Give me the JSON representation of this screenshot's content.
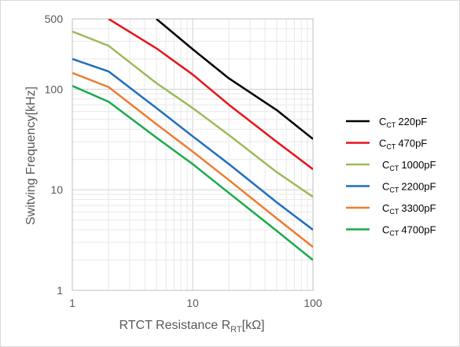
{
  "chart_data": {
    "type": "line",
    "xscale": "log",
    "yscale": "log",
    "xlim": [
      1,
      100
    ],
    "ylim": [
      1,
      500
    ],
    "x_ticks": [
      1,
      10,
      100
    ],
    "x_tick_labels": [
      "1",
      "10",
      "100"
    ],
    "y_ticks": [
      1,
      10,
      100,
      500
    ],
    "y_tick_labels": [
      "1",
      "10",
      "100",
      "500"
    ],
    "xlabel": {
      "main": "RTCT Resistance R",
      "sub": "RT",
      "unit": "[kΩ]"
    },
    "ylabel": "Switving Frequency[kHz]",
    "grid": true,
    "legend_position": "right",
    "series": [
      {
        "name": "220pF",
        "name_prefix": "C",
        "name_sub": "CT",
        "color": "#000000",
        "points": [
          [
            5,
            500
          ],
          [
            10,
            250
          ],
          [
            20,
            128
          ],
          [
            50,
            62
          ],
          [
            100,
            32
          ]
        ]
      },
      {
        "name": "470pF",
        "name_prefix": "C",
        "name_sub": "CT",
        "color": "#e8141c",
        "points": [
          [
            2,
            500
          ],
          [
            5,
            255
          ],
          [
            10,
            140
          ],
          [
            20,
            70
          ],
          [
            50,
            30
          ],
          [
            100,
            16
          ]
        ]
      },
      {
        "name": "1000pF",
        "name_prefix": "C",
        "name_sub": "CT",
        "color": "#9bbb59",
        "points": [
          [
            1,
            375
          ],
          [
            2,
            270
          ],
          [
            5,
            115
          ],
          [
            10,
            65
          ],
          [
            20,
            35
          ],
          [
            50,
            15
          ],
          [
            100,
            8.5
          ]
        ]
      },
      {
        "name": "2200pF",
        "name_prefix": "C",
        "name_sub": "CT",
        "color": "#1f6fba",
        "points": [
          [
            1,
            200
          ],
          [
            2,
            150
          ],
          [
            5,
            65
          ],
          [
            10,
            34
          ],
          [
            20,
            18
          ],
          [
            50,
            7.5
          ],
          [
            100,
            4
          ]
        ]
      },
      {
        "name": "3300pF",
        "name_prefix": "C",
        "name_sub": "CT",
        "color": "#ed7d31",
        "points": [
          [
            1,
            145
          ],
          [
            2,
            105
          ],
          [
            5,
            45
          ],
          [
            10,
            24
          ],
          [
            20,
            12.5
          ],
          [
            50,
            5.2
          ],
          [
            100,
            2.7
          ]
        ]
      },
      {
        "name": "4700pF",
        "name_prefix": "C",
        "name_sub": "CT",
        "color": "#1aab4b",
        "points": [
          [
            1,
            108
          ],
          [
            2,
            75
          ],
          [
            5,
            33
          ],
          [
            10,
            18
          ],
          [
            20,
            9.3
          ],
          [
            50,
            3.9
          ],
          [
            100,
            2
          ]
        ]
      }
    ]
  }
}
